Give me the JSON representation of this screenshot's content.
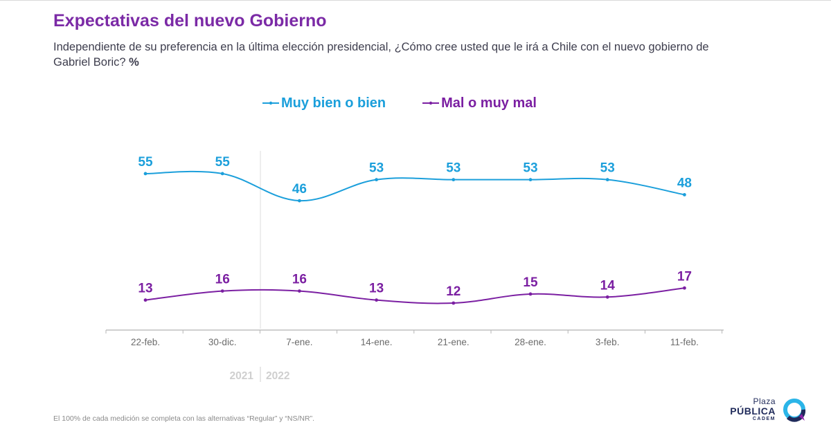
{
  "header": {
    "title": "Expectativas del nuevo Gobierno",
    "subtitle": "Independiente de su preferencia en la última elección presidencial, ¿Cómo cree usted que le irá a Chile con el nuevo gobierno de Gabriel Boric?",
    "unit": "%"
  },
  "chart_data": {
    "type": "line",
    "categories": [
      "22-feb.",
      "30-dic.",
      "7-ene.",
      "14-ene.",
      "21-ene.",
      "28-ene.",
      "3-feb.",
      "11-feb."
    ],
    "series": [
      {
        "name": "Muy bien o bien",
        "color": "#1b9fdb",
        "values": [
          55,
          55,
          46,
          53,
          53,
          53,
          53,
          48
        ]
      },
      {
        "name": "Mal o muy mal",
        "color": "#7b1fa2",
        "values": [
          13,
          16,
          16,
          13,
          12,
          15,
          14,
          17
        ]
      }
    ],
    "year_labels": [
      "2021",
      "2022"
    ],
    "year_divider_after_index": 1,
    "legend_position": "top-center",
    "grid": false,
    "data_labels": true,
    "smooth": true
  },
  "footnote": "El 100% de cada medición se completa con las alternativas “Regular” y “NS/NR”.",
  "logo": {
    "line1": "Plaza",
    "line2": "PÚBLICA",
    "line3": "CADEM",
    "colors": [
      "#1f2a5a",
      "#2bb5e8",
      "#8e24aa"
    ]
  }
}
